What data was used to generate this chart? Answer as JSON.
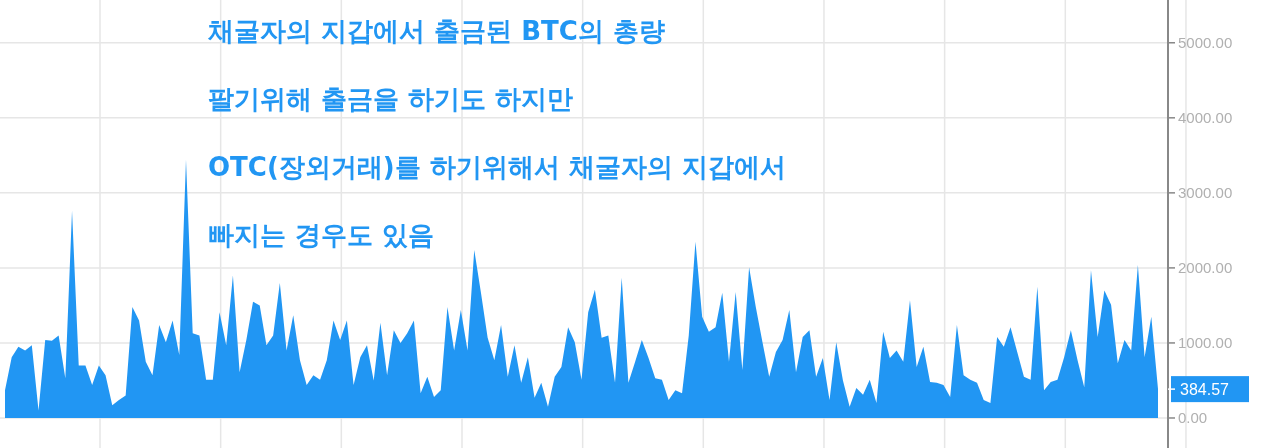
{
  "chart_data": {
    "type": "area",
    "color": "#2196f3",
    "grid": true,
    "tick_labels": "y",
    "ylim": [
      -400,
      5570
    ],
    "yticks": [
      {
        "value": 0,
        "label": "0.00"
      },
      {
        "value": 1000,
        "label": "1000.00"
      },
      {
        "value": 2000,
        "label": "2000.00"
      },
      {
        "value": 3000,
        "label": "3000.00"
      },
      {
        "value": 4000,
        "label": "4000.00"
      },
      {
        "value": 5000,
        "label": "5000.00"
      }
    ],
    "annotations": [
      "채굴자의 지갑에서 출금된 BTC의 총량",
      "팔기위해 출금을 하기도 하지만",
      "OTC(장외거래)를 하기위해서 채굴자의 지갑에서",
      "빠지는 경우도 있음",
      "384.57"
    ],
    "categories": [
      null,
      null,
      null,
      null,
      null,
      null,
      null,
      null,
      null,
      null,
      null,
      null,
      null,
      null,
      null,
      null,
      null,
      null,
      null,
      null,
      null,
      null,
      null,
      null,
      null,
      null,
      null,
      null,
      null,
      null,
      null,
      null,
      null,
      null,
      null,
      null,
      null,
      null,
      null,
      null,
      null,
      null,
      null,
      null,
      null,
      null,
      null,
      null,
      null,
      null,
      null,
      null,
      null,
      null,
      null,
      null,
      null,
      null,
      null,
      null,
      null,
      null,
      null,
      null,
      null,
      null,
      null,
      null,
      null,
      null,
      null,
      null,
      null,
      null,
      null,
      null,
      null,
      null,
      null,
      null,
      null,
      null,
      null,
      null,
      null,
      null,
      null,
      null,
      null,
      null,
      null,
      null,
      null,
      null,
      null,
      null,
      null,
      null,
      null,
      null,
      null,
      null,
      null,
      null,
      null,
      null,
      null,
      null,
      null,
      null,
      null,
      null,
      null,
      null,
      null,
      null,
      null,
      null,
      null,
      null,
      null,
      null,
      null,
      null,
      null,
      null,
      null,
      null,
      null,
      null,
      null,
      null,
      null,
      null,
      null,
      null,
      null,
      null,
      null,
      null,
      null,
      null,
      null,
      null,
      null,
      null,
      null,
      null,
      null,
      null,
      null,
      null,
      null,
      null,
      null,
      null,
      null,
      null,
      null,
      null,
      null,
      null,
      null,
      null,
      null,
      null,
      null,
      null,
      null,
      null,
      null,
      null,
      null
    ],
    "values": [
      370,
      810,
      950,
      900,
      970,
      100,
      1040,
      1030,
      1100,
      530,
      2760,
      700,
      700,
      440,
      700,
      570,
      170,
      240,
      300,
      1480,
      1300,
      750,
      570,
      1240,
      1010,
      1300,
      840,
      3440,
      1130,
      1100,
      510,
      510,
      1410,
      970,
      1900,
      610,
      1040,
      1550,
      1500,
      970,
      1100,
      1800,
      900,
      1370,
      770,
      440,
      570,
      510,
      770,
      1300,
      1040,
      1300,
      440,
      810,
      970,
      500,
      1270,
      570,
      1170,
      1000,
      1130,
      1300,
      330,
      550,
      280,
      370,
      1480,
      900,
      1440,
      900,
      2240,
      1670,
      1070,
      770,
      1240,
      550,
      970,
      470,
      810,
      270,
      470,
      150,
      550,
      680,
      1210,
      1010,
      510,
      1410,
      1710,
      1070,
      1100,
      470,
      1870,
      470,
      750,
      1040,
      800,
      530,
      510,
      240,
      370,
      330,
      1100,
      2350,
      1350,
      1150,
      1210,
      1670,
      750,
      1680,
      640,
      2010,
      1480,
      1010,
      550,
      880,
      1040,
      1440,
      610,
      1080,
      1170,
      550,
      800,
      240,
      1010,
      500,
      150,
      400,
      310,
      510,
      200,
      1150,
      800,
      900,
      750,
      1570,
      680,
      950,
      480,
      470,
      440,
      280,
      1240,
      570,
      510,
      470,
      240,
      200,
      1080,
      950,
      1210,
      880,
      550,
      510,
      1750,
      370,
      480,
      510,
      810,
      1170,
      770,
      410,
      1970,
      1080,
      1700,
      1510,
      730,
      1040,
      900,
      2040,
      810,
      1350,
      384.57
    ]
  }
}
